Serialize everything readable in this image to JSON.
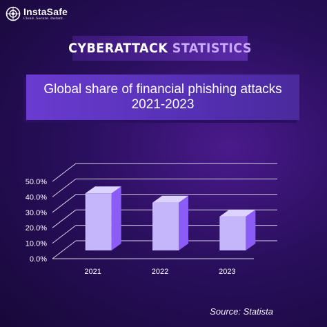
{
  "brand": {
    "name": "InstaSafe",
    "tagline": "Cloud. Secure. Instant."
  },
  "headline": {
    "word1": "CYBERATTACK",
    "word2": "STATISTICS"
  },
  "chart_data": {
    "type": "bar",
    "title": "Global share of financial phishing attacks 2021-2023",
    "categories": [
      "2021",
      "2022",
      "2023"
    ],
    "values": [
      42.3,
      36.3,
      27.3
    ],
    "ylim": [
      0,
      50
    ],
    "yticks": [
      "0.0%",
      "10.0%",
      "20.0%",
      "30.0%",
      "40.0%",
      "50.0%"
    ],
    "grid": true,
    "three_d": true
  },
  "source": "Source:  Statista",
  "colors": {
    "bar_front": "#c5b6fc",
    "bar_side": "#8b5cf6",
    "bar_top": "#ddd3ff",
    "grid": "#d8d0ea",
    "accent": "#c9a9ff"
  }
}
